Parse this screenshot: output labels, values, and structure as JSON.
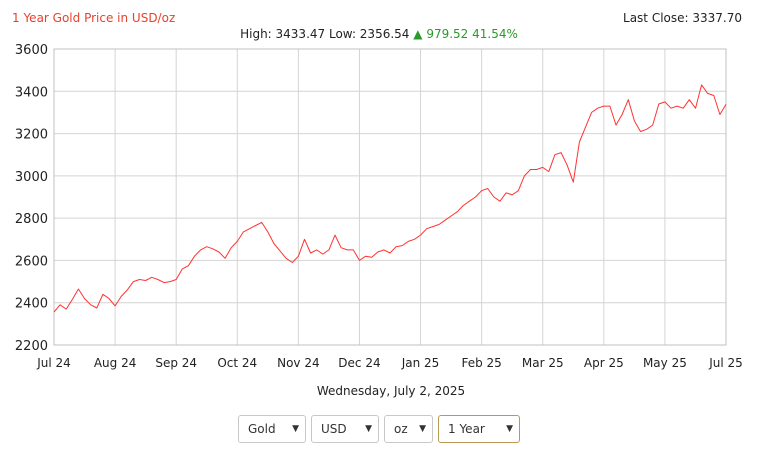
{
  "header": {
    "title": "1 Year Gold Price in USD/oz",
    "last_close": "Last Close: 3337.70",
    "high_low": "High: 3433.47 Low: 2356.54",
    "change_arrow": "▲",
    "change": "979.52 41.54%"
  },
  "date_line": "Wednesday, July 2, 2025",
  "controls": [
    {
      "name": "metal-select",
      "value": "Gold"
    },
    {
      "name": "currency-select",
      "value": "USD"
    },
    {
      "name": "unit-select",
      "value": "oz"
    },
    {
      "name": "period-select",
      "value": "1 Year"
    }
  ],
  "controls_caret_icon": "chevron-down-icon",
  "colors": {
    "line": "#ff3333",
    "title": "#e8412c",
    "change_up": "#2a9a2a",
    "grid": "#d4d4d4"
  },
  "chart_data": {
    "type": "line",
    "title": "1 Year Gold Price in USD/oz",
    "xlabel": "",
    "ylabel": "",
    "ylim": [
      2200,
      3600
    ],
    "yticks": [
      2200,
      2400,
      2600,
      2800,
      3000,
      3200,
      3400,
      3600
    ],
    "xtick_labels": [
      "Jul 24",
      "Aug 24",
      "Sep 24",
      "Oct 24",
      "Nov 24",
      "Dec 24",
      "Jan 25",
      "Feb 25",
      "Mar 25",
      "Apr 25",
      "May 25",
      "Jul 25"
    ],
    "grid": true,
    "legend": "none",
    "series": [
      {
        "x": [
          0,
          0.1,
          0.2,
          0.3,
          0.4,
          0.5,
          0.6,
          0.7,
          0.8,
          0.9,
          1.0,
          1.1,
          1.2,
          1.3,
          1.4,
          1.5,
          1.6,
          1.7,
          1.8,
          1.9,
          2.0,
          2.1,
          2.2,
          2.3,
          2.4,
          2.5,
          2.6,
          2.7,
          2.8,
          2.9,
          3.0,
          3.1,
          3.2,
          3.3,
          3.4,
          3.5,
          3.6,
          3.7,
          3.8,
          3.9,
          4.0,
          4.1,
          4.2,
          4.3,
          4.4,
          4.5,
          4.6,
          4.7,
          4.8,
          4.9,
          5.0,
          5.1,
          5.2,
          5.3,
          5.4,
          5.5,
          5.6,
          5.7,
          5.8,
          5.9,
          6.0,
          6.1,
          6.2,
          6.3,
          6.4,
          6.5,
          6.6,
          6.7,
          6.8,
          6.9,
          7.0,
          7.1,
          7.2,
          7.3,
          7.4,
          7.5,
          7.6,
          7.7,
          7.8,
          7.9,
          8.0,
          8.1,
          8.2,
          8.3,
          8.4,
          8.5,
          8.6,
          8.7,
          8.8,
          8.9,
          9.0,
          9.1,
          9.2,
          9.3,
          9.4,
          9.5,
          9.6,
          9.7,
          9.8,
          9.9,
          10.0,
          10.1,
          10.2,
          10.3,
          10.4,
          10.5,
          10.6,
          10.7,
          10.8,
          10.9,
          11.0
        ],
        "y": [
          2356,
          2390,
          2370,
          2415,
          2465,
          2420,
          2390,
          2375,
          2440,
          2420,
          2385,
          2430,
          2460,
          2500,
          2510,
          2505,
          2520,
          2510,
          2495,
          2500,
          2510,
          2560,
          2575,
          2620,
          2650,
          2665,
          2655,
          2640,
          2610,
          2660,
          2690,
          2735,
          2750,
          2765,
          2780,
          2735,
          2680,
          2645,
          2610,
          2590,
          2620,
          2700,
          2635,
          2650,
          2630,
          2650,
          2720,
          2660,
          2650,
          2650,
          2600,
          2620,
          2615,
          2640,
          2650,
          2635,
          2665,
          2670,
          2690,
          2700,
          2720,
          2750,
          2760,
          2770,
          2790,
          2810,
          2830,
          2860,
          2880,
          2900,
          2930,
          2940,
          2900,
          2880,
          2920,
          2910,
          2930,
          3000,
          3030,
          3030,
          3040,
          3020,
          3100,
          3110,
          3050,
          2970,
          3160,
          3230,
          3300,
          3320,
          3330,
          3330,
          3240,
          3290,
          3360,
          3260,
          3210,
          3220,
          3240,
          3340,
          3350,
          3320,
          3330,
          3320,
          3360,
          3320,
          3430,
          3390,
          3380,
          3290,
          3338
        ]
      }
    ]
  }
}
